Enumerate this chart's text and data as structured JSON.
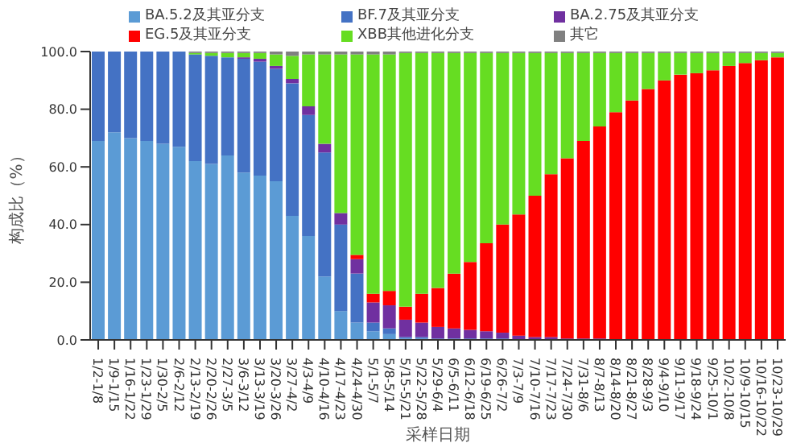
{
  "chart_data": {
    "type": "bar",
    "stacked": true,
    "xlabel": "采样日期",
    "ylabel": "构成比（%）",
    "categories": [
      "1/2-1/8",
      "1/9-1/15",
      "1/16-1/22",
      "1/23-1/29",
      "1/30-2/5",
      "2/6-2/12",
      "2/13-2/19",
      "2/20-2/26",
      "2/27-3/5",
      "3/6-3/12",
      "3/13-3/19",
      "3/20-3/26",
      "3/27-4/2",
      "4/3-4/9",
      "4/10-4/16",
      "4/17-4/23",
      "4/24-4/30",
      "5/1-5/7",
      "5/8-5/14",
      "5/15-5/21",
      "5/22-5/28",
      "5/29-6/4",
      "6/5-6/11",
      "6/12-6/18",
      "6/19-6/25",
      "6/26-7/2",
      "7/3-7/9",
      "7/10-7/16",
      "7/17-7/23",
      "7/24-7/30",
      "7/31-8/6",
      "8/7-8/13",
      "8/14-8/20",
      "8/21-8/27",
      "8/28-9/3",
      "9/4-9/10",
      "9/11-9/17",
      "9/18-9/24",
      "9/25-10/1",
      "10/2-10/8",
      "10/9-10/15",
      "10/16-10/22",
      "10/23-10/29"
    ],
    "series": [
      {
        "name": "BA.5.2及其亚分支",
        "color": "#5b9bd5",
        "values": [
          69,
          72,
          70,
          69,
          68,
          67,
          62,
          61,
          64,
          58,
          57,
          55,
          43,
          36,
          22,
          10,
          6,
          3,
          2,
          0.5,
          0.5,
          0.3,
          0.3,
          0.2,
          0.2,
          0.2,
          0,
          0,
          0,
          0,
          0,
          0,
          0,
          0,
          0,
          0,
          0,
          0,
          0,
          0,
          0,
          0,
          0
        ]
      },
      {
        "name": "BF.7及其亚分支",
        "color": "#4472c4",
        "values": [
          31,
          28,
          30,
          31,
          32,
          33,
          37,
          37.5,
          34,
          39.5,
          39.5,
          39,
          46,
          42,
          43,
          30,
          17,
          3,
          2,
          0.5,
          0.5,
          0.2,
          0.2,
          0.3,
          0.3,
          0.3,
          0,
          0,
          0,
          0,
          0,
          0,
          0,
          0,
          0,
          0,
          0,
          0,
          0,
          0,
          0,
          0,
          0
        ]
      },
      {
        "name": "BA.2.75及其亚分支",
        "color": "#7030a0",
        "values": [
          0,
          0,
          0,
          0,
          0,
          0,
          0,
          0,
          0,
          0.5,
          1,
          1,
          1.5,
          3,
          3,
          4,
          5,
          7,
          8,
          6,
          5,
          4,
          3.5,
          3,
          2.5,
          2,
          1.5,
          1,
          1,
          0.5,
          0.5,
          0.5,
          0,
          0,
          0,
          0,
          0,
          0,
          0,
          0,
          0,
          0,
          0
        ]
      },
      {
        "name": "EG.5及其亚分支",
        "color": "#ff0000",
        "values": [
          0,
          0,
          0,
          0,
          0,
          0,
          0,
          0,
          0,
          0,
          0,
          0,
          0,
          0,
          0,
          0,
          1.5,
          3,
          5,
          4.5,
          10,
          13.5,
          19,
          23.5,
          30.5,
          37.5,
          42,
          49,
          56.5,
          62.5,
          68.5,
          73.5,
          79,
          83,
          87,
          90,
          92,
          92.5,
          93.5,
          95,
          96,
          97,
          98
        ]
      },
      {
        "name": "XBB其他进化分支",
        "color": "#66dd22",
        "values": [
          0,
          0,
          0,
          0,
          0,
          0,
          0.5,
          1,
          1.5,
          1.5,
          2,
          4,
          8,
          18,
          31,
          55,
          69.5,
          83,
          82,
          88,
          83.5,
          81.5,
          76.5,
          72.5,
          66,
          59.5,
          56,
          49.5,
          42,
          36.5,
          30.5,
          25.5,
          20.5,
          16.5,
          12.5,
          9.5,
          7.5,
          7,
          6,
          4.5,
          3.5,
          2.5,
          1.5
        ]
      },
      {
        "name": "其它",
        "color": "#808080",
        "values": [
          0,
          0,
          0,
          0,
          0,
          0,
          0.5,
          0.5,
          0.5,
          0.5,
          0.5,
          1,
          1.5,
          1,
          1,
          1,
          1,
          1,
          1,
          0.5,
          0.5,
          0.5,
          0.5,
          0.5,
          0.5,
          0.5,
          0.5,
          0.5,
          0.5,
          0.5,
          0.5,
          0.5,
          0.5,
          0.5,
          0.5,
          0.5,
          0.5,
          0.5,
          0.5,
          0.5,
          0.5,
          0.5,
          0.5
        ]
      }
    ],
    "ylim": [
      0,
      100
    ],
    "yticks": [
      {
        "value": 0,
        "label": "0.0"
      },
      {
        "value": 20,
        "label": "20.0"
      },
      {
        "value": 40,
        "label": "40.0"
      },
      {
        "value": 60,
        "label": "60.0"
      },
      {
        "value": 80,
        "label": "80.0"
      },
      {
        "value": 100,
        "label": "100.0"
      }
    ],
    "legend": "top"
  }
}
